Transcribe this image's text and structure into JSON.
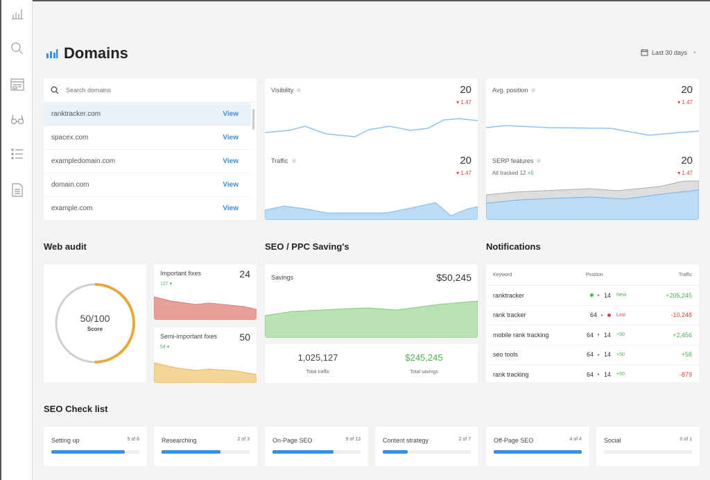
{
  "sidebar": {
    "icons": [
      "bar-chart-icon",
      "keyword-search-icon",
      "layout-icon",
      "glasses-icon",
      "list-icon",
      "document-icon"
    ]
  },
  "header": {
    "title": "Domains",
    "date_range": "Last 30 days"
  },
  "domains": {
    "search_placeholder": "Search domains",
    "view_label": "View",
    "items": [
      "ranktracker.com",
      "spacex.com",
      "exampledomain.com",
      "domain.com",
      "example.com"
    ]
  },
  "metrics": [
    {
      "label": "Visibility",
      "value": "20",
      "delta": "▾ 1.47"
    },
    {
      "label": "Avg. position",
      "value": "20",
      "delta": "▾ 1.47"
    },
    {
      "label": "Traffic",
      "value": "20",
      "delta": "▾ 1.47"
    },
    {
      "label": "SERP features",
      "value": "20",
      "delta": "▾ 1.47",
      "sub": "All tracked 12",
      "sub_delta": "+5"
    }
  ],
  "web_audit": {
    "heading": "Web audit",
    "score": "50/100",
    "score_label": "Score",
    "score_fraction": 0.5,
    "important": {
      "label": "Important fixes",
      "value": "24",
      "delta": "127 ▾"
    },
    "semi": {
      "label": "Semi-important fixes",
      "value": "50",
      "delta": "54 ▾"
    }
  },
  "savings": {
    "heading": "SEO / PPC Saving's",
    "label": "Savings",
    "value": "$50,245",
    "total_traffic": "1,025,127",
    "total_traffic_label": "Total traffic",
    "total_savings": "$245,245",
    "total_savings_label": "Total savings"
  },
  "notifications": {
    "heading": "Notifications",
    "columns": [
      "Keyword",
      "Position",
      "Traffic"
    ],
    "rows": [
      {
        "keyword": "ranktracker",
        "from": "",
        "to": "14",
        "status": "New",
        "traffic": "+205,245"
      },
      {
        "keyword": "rank tracker",
        "from": "64",
        "to": "",
        "status": "Lost",
        "traffic": "-10,248"
      },
      {
        "keyword": "mobile rank tracking",
        "from": "64",
        "to": "14",
        "status": "+50",
        "traffic": "+2,456"
      },
      {
        "keyword": "seo tools",
        "from": "64",
        "to": "14",
        "status": "+50",
        "traffic": "+58"
      },
      {
        "keyword": "rank tracking",
        "from": "64",
        "to": "14",
        "status": "+50",
        "traffic": "-879"
      }
    ]
  },
  "checklist": {
    "heading": "SEO Check list",
    "items": [
      {
        "label": "Setting up",
        "count": "5 of 6",
        "progress": 0.833
      },
      {
        "label": "Researching",
        "count": "2 of 3",
        "progress": 0.667
      },
      {
        "label": "On-Page SEO",
        "count": "9 of 13",
        "progress": 0.692
      },
      {
        "label": "Content strategy",
        "count": "2 of 7",
        "progress": 0.286
      },
      {
        "label": "Off-Page SEO",
        "count": "4 of 4",
        "progress": 1
      },
      {
        "label": "Social",
        "count": "0 of 1",
        "progress": 0
      }
    ]
  },
  "colors": {
    "accent": "#3b8ee0",
    "positive": "#4caf50",
    "negative": "#d0453b",
    "score": "#e6a93a"
  }
}
